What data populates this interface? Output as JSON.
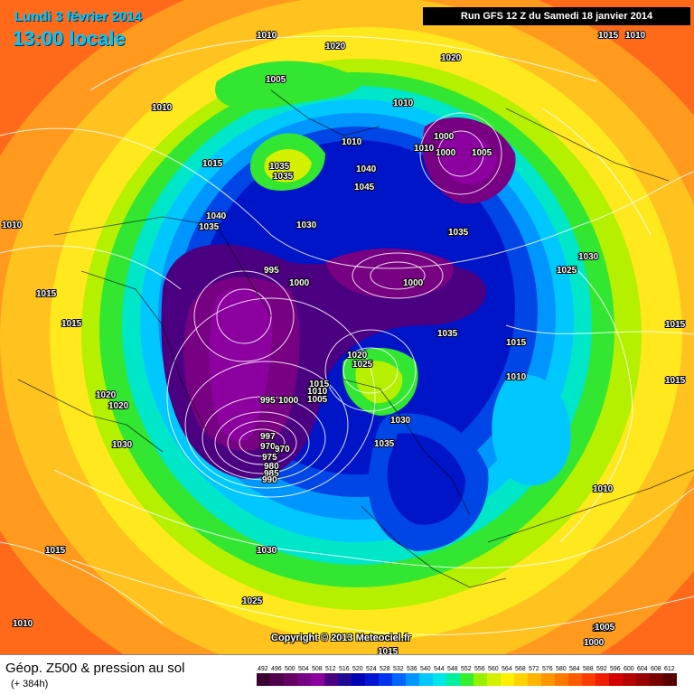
{
  "header": {
    "date": "Lundi 3 février 2014",
    "time": "13:00 locale",
    "run": "Run GFS 12 Z du Samedi 18 janvier 2014"
  },
  "footer": {
    "title": "Géop. Z500 & pression au sol",
    "forecast_hour": "(+ 384h)",
    "copyright": "Copyright © 2013 Meteociel.fr"
  },
  "legend": {
    "values": [
      "492",
      "496",
      "500",
      "504",
      "508",
      "512",
      "516",
      "520",
      "524",
      "528",
      "532",
      "536",
      "540",
      "544",
      "548",
      "552",
      "556",
      "560",
      "564",
      "568",
      "572",
      "576",
      "580",
      "584",
      "588",
      "592",
      "596",
      "600",
      "604",
      "608",
      "612"
    ],
    "colors": [
      "#3c0032",
      "#50004a",
      "#640064",
      "#780082",
      "#8c00a0",
      "#4b0082",
      "#1e0a96",
      "#0000b4",
      "#0014d2",
      "#0032f0",
      "#0064ff",
      "#0096ff",
      "#00c8ff",
      "#00e6e6",
      "#00f0a0",
      "#32f032",
      "#96f000",
      "#d2f000",
      "#fff000",
      "#ffd200",
      "#ffb400",
      "#ff9600",
      "#ff7800",
      "#ff5a00",
      "#ff3c00",
      "#f01e00",
      "#d20000",
      "#b40000",
      "#960000",
      "#780000",
      "#5a0000"
    ]
  },
  "pressure_labels": [
    {
      "text": "1010"
    },
    {
      "text": "1020"
    },
    {
      "text": "1020"
    },
    {
      "text": "1010"
    },
    {
      "text": "1005"
    },
    {
      "text": "1015"
    },
    {
      "text": "1010"
    },
    {
      "text": "1010"
    },
    {
      "text": "1000"
    },
    {
      "text": "1010"
    },
    {
      "text": "1000"
    },
    {
      "text": "1005"
    },
    {
      "text": "1015"
    },
    {
      "text": "1035"
    },
    {
      "text": "1035"
    },
    {
      "text": "1040"
    },
    {
      "text": "1045"
    },
    {
      "text": "1040"
    },
    {
      "text": "1035"
    },
    {
      "text": "1030"
    },
    {
      "text": "1035"
    },
    {
      "text": "1030"
    },
    {
      "text": "1025"
    },
    {
      "text": "995"
    },
    {
      "text": "1000"
    },
    {
      "text": "1000"
    },
    {
      "text": "1015"
    },
    {
      "text": "1015"
    },
    {
      "text": "1015"
    },
    {
      "text": "1035"
    },
    {
      "text": "1020"
    },
    {
      "text": "1025"
    },
    {
      "text": "1015"
    },
    {
      "text": "1010"
    },
    {
      "text": "1010"
    },
    {
      "text": "995"
    },
    {
      "text": "1000"
    },
    {
      "text": "1005"
    },
    {
      "text": "1010"
    },
    {
      "text": "1015"
    },
    {
      "text": "1030"
    },
    {
      "text": "1035"
    },
    {
      "text": "1020"
    },
    {
      "text": "1020"
    },
    {
      "text": "1030"
    },
    {
      "text": "997"
    },
    {
      "text": "970"
    },
    {
      "text": "970"
    },
    {
      "text": "975"
    },
    {
      "text": "980"
    },
    {
      "text": "985"
    },
    {
      "text": "990"
    },
    {
      "text": "1015"
    },
    {
      "text": "1010"
    },
    {
      "text": "1015"
    },
    {
      "text": "1030"
    },
    {
      "text": "1025"
    },
    {
      "text": "1010"
    },
    {
      "text": "1010"
    },
    {
      "text": "1015"
    },
    {
      "text": "1005"
    },
    {
      "text": "1000"
    },
    {
      "text": "1010"
    }
  ]
}
